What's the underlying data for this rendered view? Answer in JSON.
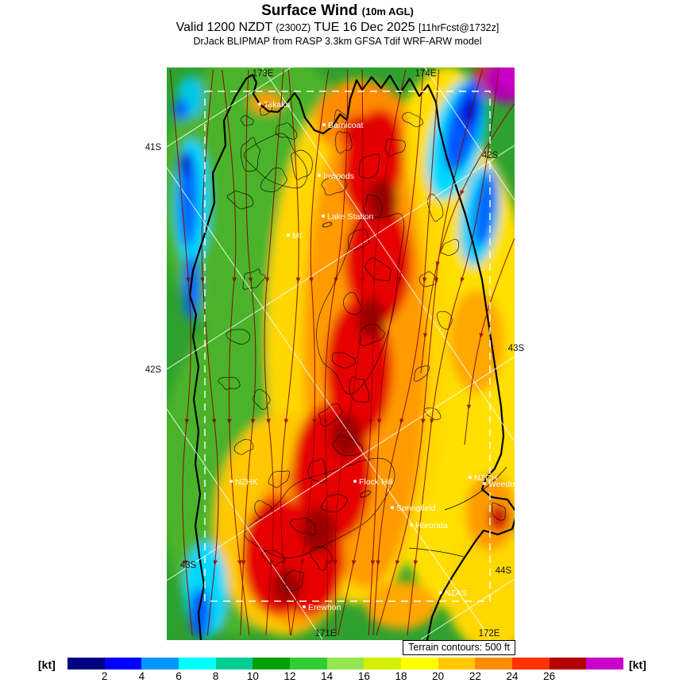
{
  "header": {
    "title": "Surface Wind",
    "title_suffix": "(10m AGL)",
    "valid_prefix": "Valid 1200 NZDT",
    "valid_zulu": "(2300Z)",
    "valid_date": "TUE 16 Dec 2025",
    "valid_fcst": "[11hrFcst@1732z]",
    "model_line": "DrJack BLIPMAP from RASP 3.3km GFSA Tdif WRF-ARW model"
  },
  "map": {
    "terrain_note": "Terrain contours: 500 ft",
    "grid_labels": [
      {
        "text": "173E"
      },
      {
        "text": "174E"
      },
      {
        "text": "41S"
      },
      {
        "text": "42S"
      },
      {
        "text": "43S"
      },
      {
        "text": "42S"
      },
      {
        "text": "43S"
      },
      {
        "text": "44S"
      },
      {
        "text": "171E"
      },
      {
        "text": "172E"
      }
    ],
    "stations": [
      {
        "name": "Takaka"
      },
      {
        "name": "Barnicoat"
      },
      {
        "name": "Inwoods"
      },
      {
        "name": "Lake Station"
      },
      {
        "name": "Mt"
      },
      {
        "name": "NZHK"
      },
      {
        "name": "Flock Hill"
      },
      {
        "name": "Springfield"
      },
      {
        "name": "Hororata"
      },
      {
        "name": "NZCH"
      },
      {
        "name": "Weedons"
      },
      {
        "name": "NZAS"
      },
      {
        "name": "Erewhon"
      }
    ]
  },
  "colorbar": {
    "unit_left": "[kt]",
    "unit_right": "[kt]",
    "tick_labels": [
      "2",
      "4",
      "6",
      "8",
      "10",
      "12",
      "14",
      "16",
      "18",
      "20",
      "22",
      "24",
      "26"
    ],
    "segment_colors": [
      "#000082",
      "#0000ff",
      "#0096ff",
      "#00ffff",
      "#00cd96",
      "#00a000",
      "#32cd32",
      "#96e650",
      "#d2f000",
      "#ffff00",
      "#ffc800",
      "#ff8c00",
      "#ff3200",
      "#b40000",
      "#c800c8"
    ]
  },
  "chart_data": {
    "type": "heatmap",
    "title": "Surface Wind (10m AGL)",
    "valid": "1200 NZDT (2300Z) TUE 16 Dec 2025 [11hrFcst@1732z]",
    "model": "DrJack BLIPMAP from RASP 3.3km GFSA Tdif WRF-ARW model",
    "colorbar_unit": "kt",
    "colorbar_ticks": [
      2,
      4,
      6,
      8,
      10,
      12,
      14,
      16,
      18,
      20,
      22,
      24,
      26
    ],
    "colorbar_colors": [
      "#000082",
      "#0000ff",
      "#0096ff",
      "#00ffff",
      "#00cd96",
      "#00a000",
      "#32cd32",
      "#96e650",
      "#d2f000",
      "#ffff00",
      "#ffc800",
      "#ff8c00",
      "#ff3200",
      "#b40000",
      "#c800c8"
    ],
    "terrain_contour_interval": "500 ft"
  }
}
